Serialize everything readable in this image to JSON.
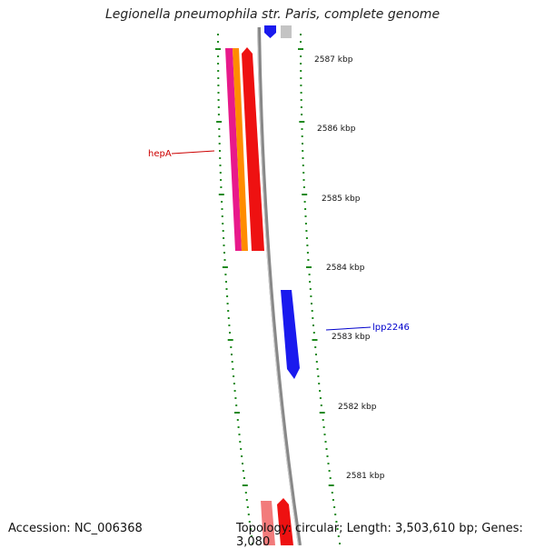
{
  "title": "Legionella pneumophila str. Paris, complete genome",
  "footer": {
    "accession": "Accession: NC_006368",
    "summary": "Topology: circular; Length: 3,503,610 bp; Genes: 3,080"
  },
  "tick_labels": [
    "2587 kbp",
    "2586 kbp",
    "2585 kbp",
    "2584 kbp",
    "2583 kbp",
    "2582 kbp",
    "2581 kbp"
  ],
  "gene_labels": {
    "hepA": "hepA",
    "lpp2246": "lpp2246"
  },
  "colors": {
    "tick": "#1f8a1f",
    "backbone": "#8a8a8a",
    "red": "#ee1111",
    "orange": "#ff8c00",
    "pink": "#e8198b",
    "blue": "#1a1aee",
    "label_red": "#cc0000",
    "label_blue": "#0000cc"
  }
}
